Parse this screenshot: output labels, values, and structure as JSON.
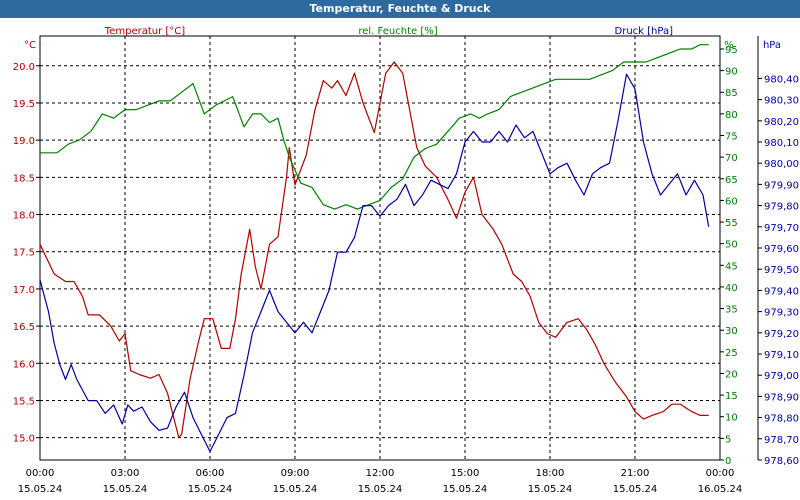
{
  "window": {
    "title": "Temperatur, Feuchte & Druck"
  },
  "colors": {
    "temperature": "#b00000",
    "humidity": "#008000",
    "pressure": "#0000a0",
    "grid": "#000000",
    "axis_text": "#000000"
  },
  "chart_data": {
    "type": "line",
    "title": "Temperatur, Feuchte & Druck",
    "grid": true,
    "legend_position": "top",
    "x_ticks": [
      {
        "time": "00:00",
        "date": "15.05.24"
      },
      {
        "time": "03:00",
        "date": "15.05.24"
      },
      {
        "time": "06:00",
        "date": "15.05.24"
      },
      {
        "time": "09:00",
        "date": "15.05.24"
      },
      {
        "time": "12:00",
        "date": "15.05.24"
      },
      {
        "time": "15:00",
        "date": "15.05.24"
      },
      {
        "time": "18:00",
        "date": "15.05.24"
      },
      {
        "time": "21:00",
        "date": "15.05.24"
      },
      {
        "time": "00:00",
        "date": "16.05.24"
      }
    ],
    "xlim_hours": [
      0,
      24
    ],
    "axes": {
      "temperature": {
        "unit": "°C",
        "ylim": [
          14.7,
          20.4
        ],
        "ticks": [
          "15.0",
          "15.5",
          "16.0",
          "16.5",
          "17.0",
          "17.5",
          "18.0",
          "18.5",
          "19.0",
          "19.5",
          "20.0"
        ]
      },
      "humidity": {
        "unit": "%",
        "ylim": [
          0,
          98
        ],
        "ticks": [
          "0",
          "5",
          "10",
          "15",
          "20",
          "25",
          "30",
          "35",
          "40",
          "45",
          "50",
          "55",
          "60",
          "65",
          "70",
          "75",
          "80",
          "85",
          "90",
          "95"
        ]
      },
      "pressure": {
        "unit": "hPa",
        "ylim": [
          978.6,
          980.6
        ],
        "ticks": [
          "978,60",
          "978,70",
          "978,80",
          "978,90",
          "979,00",
          "979,10",
          "979,20",
          "979,30",
          "979,40",
          "979,50",
          "979,60",
          "979,70",
          "979,80",
          "979,90",
          "980,00",
          "980,10",
          "980,20",
          "980,30",
          "980,40"
        ]
      }
    },
    "series": [
      {
        "name": "Temperatur [°C]",
        "axis": "temperature",
        "points": [
          [
            0,
            17.6
          ],
          [
            0.5,
            17.2
          ],
          [
            0.9,
            17.1
          ],
          [
            1.2,
            17.1
          ],
          [
            1.5,
            16.9
          ],
          [
            1.7,
            16.65
          ],
          [
            2.1,
            16.65
          ],
          [
            2.5,
            16.5
          ],
          [
            2.8,
            16.3
          ],
          [
            3.0,
            16.4
          ],
          [
            3.2,
            15.9
          ],
          [
            3.5,
            15.85
          ],
          [
            3.9,
            15.8
          ],
          [
            4.2,
            15.85
          ],
          [
            4.5,
            15.6
          ],
          [
            4.9,
            15.0
          ],
          [
            5.0,
            15.05
          ],
          [
            5.3,
            15.8
          ],
          [
            5.6,
            16.3
          ],
          [
            5.8,
            16.6
          ],
          [
            6.1,
            16.6
          ],
          [
            6.4,
            16.2
          ],
          [
            6.7,
            16.2
          ],
          [
            6.9,
            16.6
          ],
          [
            7.1,
            17.2
          ],
          [
            7.4,
            17.8
          ],
          [
            7.6,
            17.3
          ],
          [
            7.8,
            17.0
          ],
          [
            8.1,
            17.6
          ],
          [
            8.4,
            17.7
          ],
          [
            8.7,
            18.5
          ],
          [
            8.8,
            18.9
          ],
          [
            9.0,
            18.4
          ],
          [
            9.4,
            18.8
          ],
          [
            9.7,
            19.4
          ],
          [
            10.0,
            19.8
          ],
          [
            10.3,
            19.7
          ],
          [
            10.5,
            19.8
          ],
          [
            10.8,
            19.6
          ],
          [
            11.1,
            19.9
          ],
          [
            11.4,
            19.5
          ],
          [
            11.8,
            19.1
          ],
          [
            12.2,
            19.9
          ],
          [
            12.5,
            20.05
          ],
          [
            12.8,
            19.9
          ],
          [
            13.0,
            19.5
          ],
          [
            13.3,
            18.9
          ],
          [
            13.6,
            18.65
          ],
          [
            14.0,
            18.5
          ],
          [
            14.4,
            18.2
          ],
          [
            14.7,
            17.95
          ],
          [
            15.0,
            18.3
          ],
          [
            15.3,
            18.5
          ],
          [
            15.6,
            18.0
          ],
          [
            16.0,
            17.8
          ],
          [
            16.3,
            17.6
          ],
          [
            16.7,
            17.2
          ],
          [
            17.0,
            17.1
          ],
          [
            17.3,
            16.9
          ],
          [
            17.6,
            16.55
          ],
          [
            17.9,
            16.4
          ],
          [
            18.2,
            16.35
          ],
          [
            18.6,
            16.55
          ],
          [
            19.0,
            16.6
          ],
          [
            19.3,
            16.45
          ],
          [
            19.6,
            16.25
          ],
          [
            19.9,
            16.0
          ],
          [
            20.3,
            15.75
          ],
          [
            20.7,
            15.55
          ],
          [
            21.0,
            15.35
          ],
          [
            21.3,
            15.25
          ],
          [
            21.6,
            15.3
          ],
          [
            22.0,
            15.35
          ],
          [
            22.3,
            15.45
          ],
          [
            22.6,
            15.45
          ],
          [
            23.0,
            15.35
          ],
          [
            23.3,
            15.3
          ],
          [
            23.6,
            15.3
          ]
        ]
      },
      {
        "name": "rel. Feuchte [%]",
        "axis": "humidity",
        "points": [
          [
            0,
            71
          ],
          [
            0.6,
            71
          ],
          [
            1.0,
            73
          ],
          [
            1.4,
            74
          ],
          [
            1.8,
            76
          ],
          [
            2.2,
            80
          ],
          [
            2.6,
            79
          ],
          [
            3.0,
            81
          ],
          [
            3.4,
            81
          ],
          [
            3.8,
            82
          ],
          [
            4.2,
            83
          ],
          [
            4.6,
            83
          ],
          [
            5.0,
            85
          ],
          [
            5.4,
            87
          ],
          [
            5.8,
            80
          ],
          [
            6.2,
            82
          ],
          [
            6.5,
            83
          ],
          [
            6.8,
            84
          ],
          [
            7.2,
            77
          ],
          [
            7.5,
            80
          ],
          [
            7.8,
            80
          ],
          [
            8.1,
            78
          ],
          [
            8.4,
            79
          ],
          [
            8.6,
            74
          ],
          [
            8.8,
            70
          ],
          [
            9.2,
            64
          ],
          [
            9.6,
            63
          ],
          [
            10.0,
            59
          ],
          [
            10.4,
            58
          ],
          [
            10.8,
            59
          ],
          [
            11.2,
            58
          ],
          [
            11.6,
            59
          ],
          [
            12.0,
            60
          ],
          [
            12.4,
            63
          ],
          [
            12.8,
            65
          ],
          [
            13.2,
            70
          ],
          [
            13.6,
            72
          ],
          [
            14.0,
            73
          ],
          [
            14.4,
            76
          ],
          [
            14.8,
            79
          ],
          [
            15.2,
            80
          ],
          [
            15.5,
            79
          ],
          [
            15.8,
            80
          ],
          [
            16.2,
            81
          ],
          [
            16.6,
            84
          ],
          [
            17.0,
            85
          ],
          [
            17.4,
            86
          ],
          [
            17.8,
            87
          ],
          [
            18.2,
            88
          ],
          [
            18.6,
            88
          ],
          [
            19.0,
            88
          ],
          [
            19.4,
            88
          ],
          [
            19.8,
            89
          ],
          [
            20.2,
            90
          ],
          [
            20.6,
            92
          ],
          [
            21.0,
            92
          ],
          [
            21.4,
            92
          ],
          [
            21.8,
            93
          ],
          [
            22.2,
            94
          ],
          [
            22.6,
            95
          ],
          [
            23.0,
            95
          ],
          [
            23.3,
            96
          ],
          [
            23.6,
            96
          ]
        ]
      },
      {
        "name": "Druck [hPa]",
        "axis": "pressure",
        "points": [
          [
            0,
            979.45
          ],
          [
            0.3,
            979.3
          ],
          [
            0.5,
            979.15
          ],
          [
            0.7,
            979.05
          ],
          [
            0.9,
            978.98
          ],
          [
            1.1,
            979.05
          ],
          [
            1.3,
            978.98
          ],
          [
            1.5,
            978.93
          ],
          [
            1.7,
            978.88
          ],
          [
            2.0,
            978.88
          ],
          [
            2.3,
            978.82
          ],
          [
            2.6,
            978.86
          ],
          [
            2.9,
            978.77
          ],
          [
            3.1,
            978.86
          ],
          [
            3.3,
            978.83
          ],
          [
            3.6,
            978.85
          ],
          [
            3.9,
            978.78
          ],
          [
            4.2,
            978.74
          ],
          [
            4.5,
            978.75
          ],
          [
            4.8,
            978.85
          ],
          [
            5.1,
            978.92
          ],
          [
            5.4,
            978.8
          ],
          [
            5.7,
            978.72
          ],
          [
            6.0,
            978.64
          ],
          [
            6.3,
            978.72
          ],
          [
            6.6,
            978.8
          ],
          [
            6.9,
            978.82
          ],
          [
            7.2,
            979.0
          ],
          [
            7.5,
            979.2
          ],
          [
            7.8,
            979.3
          ],
          [
            8.1,
            979.4
          ],
          [
            8.4,
            979.3
          ],
          [
            8.7,
            979.25
          ],
          [
            9.0,
            979.2
          ],
          [
            9.3,
            979.25
          ],
          [
            9.6,
            979.2
          ],
          [
            9.9,
            979.3
          ],
          [
            10.2,
            979.4
          ],
          [
            10.5,
            979.58
          ],
          [
            10.8,
            979.58
          ],
          [
            11.1,
            979.65
          ],
          [
            11.4,
            979.8
          ],
          [
            11.7,
            979.8
          ],
          [
            12.0,
            979.75
          ],
          [
            12.3,
            979.8
          ],
          [
            12.6,
            979.83
          ],
          [
            12.9,
            979.9
          ],
          [
            13.2,
            979.8
          ],
          [
            13.5,
            979.85
          ],
          [
            13.8,
            979.92
          ],
          [
            14.1,
            979.9
          ],
          [
            14.4,
            979.88
          ],
          [
            14.7,
            979.95
          ],
          [
            15.0,
            980.1
          ],
          [
            15.3,
            980.15
          ],
          [
            15.6,
            980.1
          ],
          [
            15.9,
            980.1
          ],
          [
            16.2,
            980.15
          ],
          [
            16.5,
            980.1
          ],
          [
            16.8,
            980.18
          ],
          [
            17.1,
            980.12
          ],
          [
            17.4,
            980.15
          ],
          [
            17.7,
            980.05
          ],
          [
            18.0,
            979.95
          ],
          [
            18.3,
            979.98
          ],
          [
            18.6,
            980.0
          ],
          [
            18.9,
            979.92
          ],
          [
            19.2,
            979.85
          ],
          [
            19.5,
            979.95
          ],
          [
            19.8,
            979.98
          ],
          [
            20.1,
            980.0
          ],
          [
            20.4,
            980.2
          ],
          [
            20.7,
            980.42
          ],
          [
            21.0,
            980.35
          ],
          [
            21.3,
            980.1
          ],
          [
            21.6,
            979.95
          ],
          [
            21.9,
            979.85
          ],
          [
            22.2,
            979.9
          ],
          [
            22.5,
            979.95
          ],
          [
            22.8,
            979.85
          ],
          [
            23.1,
            979.92
          ],
          [
            23.4,
            979.85
          ],
          [
            23.6,
            979.7
          ]
        ]
      }
    ]
  }
}
